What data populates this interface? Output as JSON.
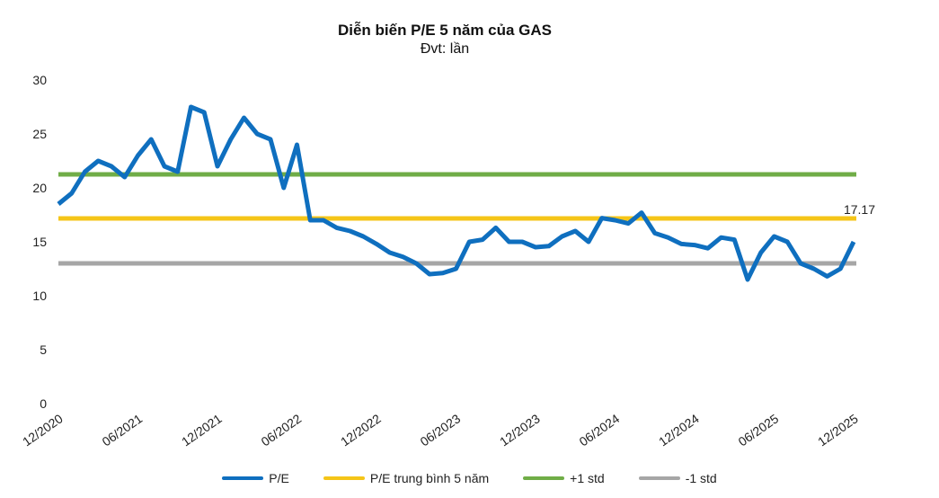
{
  "chart_data": {
    "type": "line",
    "title": "Diễn biến P/E 5 năm của GAS",
    "subtitle": "Đvt: lần",
    "ylim": [
      0,
      30
    ],
    "yticks": [
      0,
      5,
      10,
      15,
      20,
      25,
      30
    ],
    "xticks": [
      "12/2020",
      "06/2021",
      "12/2021",
      "06/2022",
      "12/2022",
      "06/2023",
      "12/2023",
      "06/2024",
      "12/2024",
      "06/2025",
      "12/2025"
    ],
    "grid": false,
    "legend_position": "bottom",
    "x": [
      "2020-12",
      "2021-01",
      "2021-02",
      "2021-03",
      "2021-04",
      "2021-05",
      "2021-06",
      "2021-07",
      "2021-08",
      "2021-09",
      "2021-10",
      "2021-11",
      "2021-12",
      "2022-01",
      "2022-02",
      "2022-03",
      "2022-04",
      "2022-05",
      "2022-06",
      "2022-07",
      "2022-08",
      "2022-09",
      "2022-10",
      "2022-11",
      "2022-12",
      "2023-01",
      "2023-02",
      "2023-03",
      "2023-04",
      "2023-05",
      "2023-06",
      "2023-07",
      "2023-08",
      "2023-09",
      "2023-10",
      "2023-11",
      "2023-12",
      "2024-01",
      "2024-02",
      "2024-03",
      "2024-04",
      "2024-05",
      "2024-06",
      "2024-07",
      "2024-08",
      "2024-09",
      "2024-10",
      "2024-11",
      "2024-12",
      "2025-01",
      "2025-02",
      "2025-03",
      "2025-04",
      "2025-05",
      "2025-06",
      "2025-07",
      "2025-08",
      "2025-09",
      "2025-10",
      "2025-11",
      "2025-12"
    ],
    "series": [
      {
        "name": "P/E",
        "color": "#0F6FBF",
        "values": [
          18.5,
          19.5,
          21.5,
          22.5,
          22,
          21,
          23,
          24.5,
          22,
          21.5,
          27.5,
          27,
          22,
          24.5,
          26.5,
          25,
          24.5,
          20,
          24,
          17,
          17,
          16.3,
          16,
          15.5,
          14.8,
          14,
          13.6,
          13,
          12,
          12.1,
          12.5,
          15,
          15.2,
          16.3,
          15,
          15,
          14.5,
          14.6,
          15.5,
          16,
          15,
          17.2,
          17,
          16.7,
          17.7,
          15.8,
          15.4,
          14.8,
          14.7,
          14.4,
          15.4,
          15.2,
          11.5,
          14,
          15.5,
          15,
          13,
          12.5,
          11.8,
          12.5,
          15
        ]
      },
      {
        "name": "P/E trung bình 5 năm",
        "color": "#F5C518",
        "constant": 17.17
      },
      {
        "name": "+1 std",
        "color": "#70AD47",
        "constant": 21.25
      },
      {
        "name": "-1 std",
        "color": "#A6A6A6",
        "constant": 13.0
      }
    ],
    "annotations": [
      {
        "text": "17.17",
        "series": "P/E trung bình 5 năm"
      }
    ]
  }
}
